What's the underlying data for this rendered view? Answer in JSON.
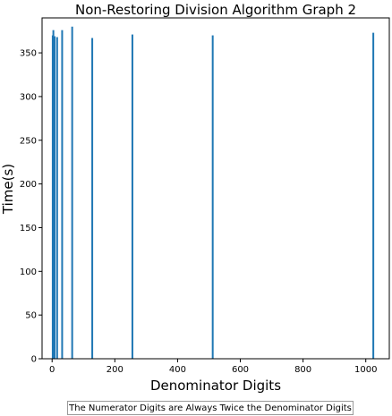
{
  "chart_data": {
    "type": "bar",
    "title": "Non-Restoring Division Algorithm Graph 2",
    "xlabel": "Denominator Digits",
    "ylabel": "Time(s)",
    "x": [
      2,
      4,
      8,
      16,
      32,
      64,
      128,
      256,
      512,
      1024
    ],
    "values": [
      370,
      376,
      369,
      368,
      376,
      380,
      367,
      371,
      370,
      373
    ],
    "xlim": [
      -32,
      1075
    ],
    "ylim": [
      0,
      390
    ],
    "xticks": [
      0,
      200,
      400,
      600,
      800,
      1000
    ],
    "yticks": [
      0,
      50,
      100,
      150,
      200,
      250,
      300,
      350
    ],
    "bar_color": "#1f77b4",
    "grid": false
  },
  "footnote": "The Numerator Digits are Always Twice the Denominator Digits"
}
